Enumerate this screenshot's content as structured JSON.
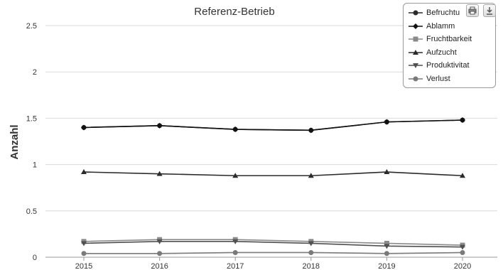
{
  "chart_data": {
    "type": "line",
    "title": "Referenz-Betrieb",
    "xlabel": "",
    "ylabel": "Anzahl",
    "categories": [
      "2015",
      "2016",
      "2017",
      "2018",
      "2019",
      "2020"
    ],
    "ylim": [
      0,
      2.5
    ],
    "yticks": [
      "0",
      "0.5",
      "1",
      "1.5",
      "2",
      "2.5"
    ],
    "grid": true,
    "legend_position": "top-right",
    "series": [
      {
        "name": "Befruchtu",
        "marker": "circle",
        "color": "#2a2a2a",
        "values": [
          1.4,
          1.42,
          1.38,
          1.37,
          1.46,
          1.48
        ]
      },
      {
        "name": "Ablamm",
        "marker": "diamond",
        "color": "#111111",
        "values": [
          1.4,
          1.42,
          1.38,
          1.37,
          1.46,
          1.48
        ]
      },
      {
        "name": "Fruchtbarkeit",
        "marker": "square",
        "color": "#8a8a8a",
        "values": [
          0.17,
          0.19,
          0.19,
          0.17,
          0.15,
          0.13
        ]
      },
      {
        "name": "Aufzucht",
        "marker": "triangle",
        "color": "#2b2b2b",
        "values": [
          0.92,
          0.9,
          0.88,
          0.88,
          0.92,
          0.88
        ]
      },
      {
        "name": "Produktivitat",
        "marker": "triangle-down",
        "color": "#505050",
        "values": [
          0.15,
          0.17,
          0.17,
          0.15,
          0.12,
          0.11
        ]
      },
      {
        "name": "Verlust",
        "marker": "circle",
        "color": "#7a7a7a",
        "values": [
          0.04,
          0.04,
          0.05,
          0.05,
          0.04,
          0.05
        ]
      }
    ]
  },
  "toolbar": {
    "print_icon": "print-icon",
    "download_icon": "download-icon"
  }
}
